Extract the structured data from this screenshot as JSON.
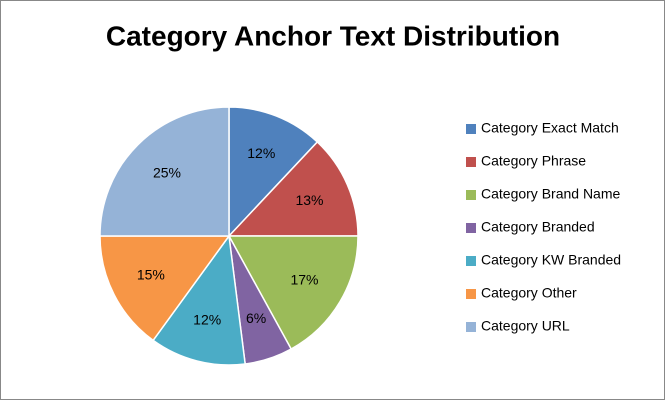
{
  "chart_data": {
    "type": "pie",
    "title": "Category Anchor Text Distribution",
    "categories": [
      "Category Exact Match",
      "Category Phrase",
      "Category Brand Name",
      "Category Branded",
      "Category KW Branded",
      "Category Other",
      "Category URL"
    ],
    "values": [
      12,
      13,
      17,
      6,
      12,
      15,
      25
    ],
    "value_labels": [
      "12%",
      "13%",
      "17%",
      "6%",
      "12%",
      "15%",
      "25%"
    ],
    "colors": [
      "#4f81bd",
      "#c0504d",
      "#9bbb59",
      "#8064a2",
      "#4bacc6",
      "#f79646",
      "#95b3d7"
    ],
    "legend": "right"
  }
}
